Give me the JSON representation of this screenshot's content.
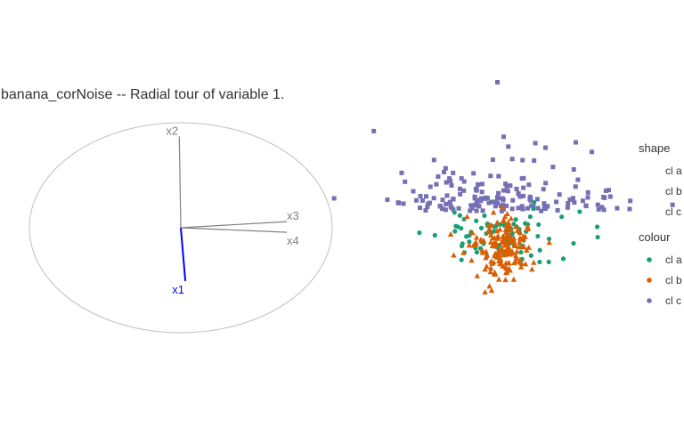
{
  "title": "banana_corNoise -- Radial tour of variable 1.",
  "colors": {
    "cl_a": "#1B9E77",
    "cl_b": "#D95F02",
    "cl_c": "#7570B3",
    "axis_default": "#808080",
    "axis_manip": "#0000FF",
    "circle": "#C0C0C0"
  },
  "chart_data": [
    {
      "type": "biplot",
      "description_kind": "axes",
      "axes": [
        {
          "name": "x1",
          "x": 0.03,
          "y": -0.35,
          "highlighted": true
        },
        {
          "name": "x2",
          "x": -0.01,
          "y": 0.6,
          "highlighted": false
        },
        {
          "name": "x3",
          "x": 0.7,
          "y": 0.04,
          "highlighted": false
        },
        {
          "name": "x4",
          "x": 0.7,
          "y": -0.03,
          "highlighted": false
        }
      ]
    },
    {
      "type": "scatter",
      "series": [
        {
          "name": "cl a",
          "shape": "circle",
          "color": "#1B9E77",
          "n": 80,
          "center": [
            0.08,
            -0.1
          ],
          "spread": [
            0.22,
            0.08
          ]
        },
        {
          "name": "cl b",
          "shape": "triangle",
          "color": "#D95F02",
          "n": 170,
          "center": [
            0.09,
            -0.17
          ],
          "spread": [
            0.1,
            0.1
          ]
        },
        {
          "name": "cl c",
          "shape": "square",
          "color": "#7570B3",
          "n": 170,
          "center": [
            0.05,
            0.12
          ],
          "spread": [
            0.38,
            0.16
          ]
        }
      ],
      "outliers": [
        {
          "series": "cl c",
          "x": 0.06,
          "y": 0.9
        },
        {
          "series": "cl c",
          "x": 0.1,
          "y": 0.55
        },
        {
          "series": "cl c",
          "x": -0.48,
          "y": 0.2
        },
        {
          "series": "cl c",
          "x": 0.64,
          "y": 0.16
        },
        {
          "series": "cl c",
          "x": 0.55,
          "y": 0.34
        }
      ]
    }
  ],
  "legend": {
    "shape": {
      "title": "shape",
      "items": [
        "cl a",
        "cl b",
        "cl c"
      ]
    },
    "colour": {
      "title": "colour",
      "items": [
        "cl a",
        "cl b",
        "cl c"
      ]
    }
  }
}
